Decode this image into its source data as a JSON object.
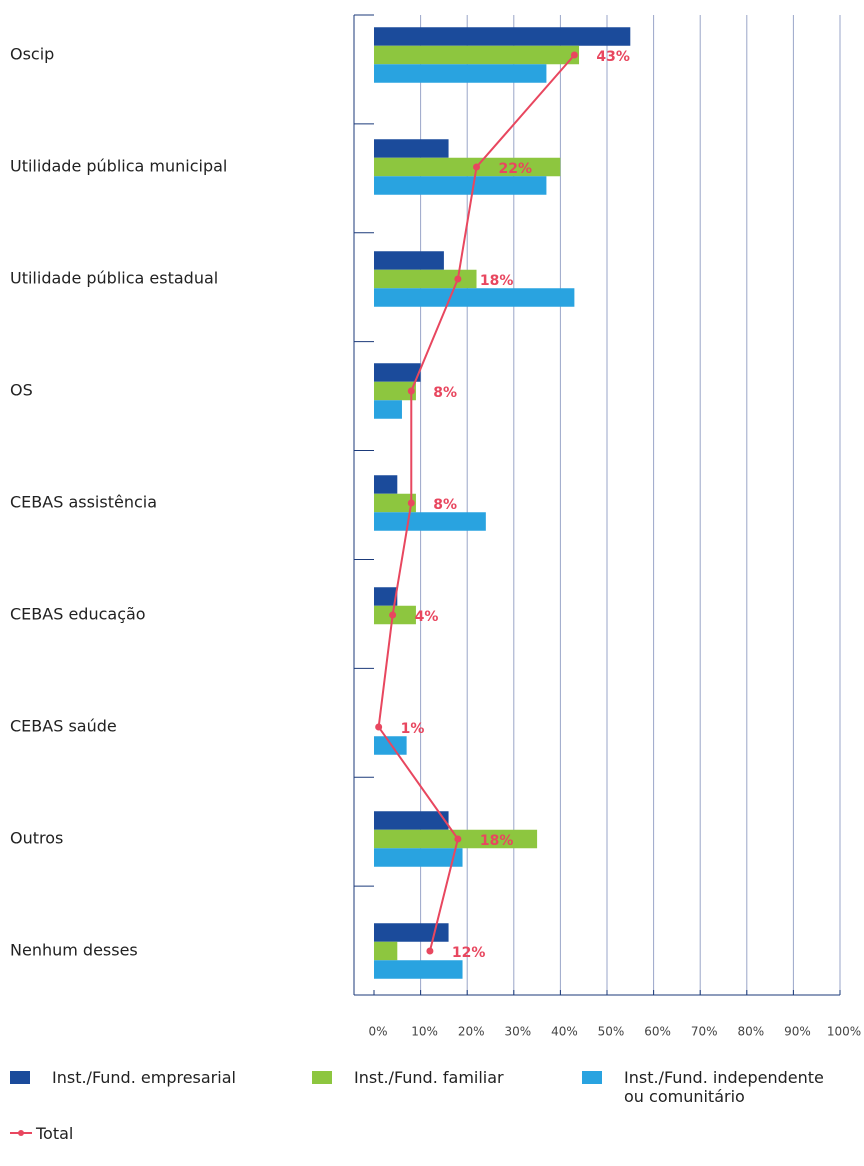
{
  "chart_data": {
    "type": "bar",
    "orientation": "horizontal",
    "categories": [
      "Oscip",
      "Utilidade pública municipal",
      "Utilidade pública estadual",
      "OS",
      "CEBAS assistência",
      "CEBAS educação",
      "CEBAS saúde",
      "Outros",
      "Nenhum desses"
    ],
    "series": [
      {
        "name": "Inst./Fund. empresarial",
        "color": "#1b4b9b",
        "values": [
          55,
          16,
          15,
          10,
          5,
          5,
          0,
          16,
          16
        ]
      },
      {
        "name": "Inst./Fund. familiar",
        "color": "#8dc63f",
        "values": [
          44,
          40,
          22,
          9,
          9,
          9,
          0,
          35,
          5
        ]
      },
      {
        "name": "Inst./Fund. independente ou comunitário",
        "color": "#29a3e0",
        "values": [
          37,
          37,
          43,
          6,
          24,
          0,
          7,
          19,
          19
        ]
      },
      {
        "name": "Total",
        "type": "line",
        "color": "#e8475f",
        "values": [
          43,
          22,
          18,
          8,
          8,
          4,
          1,
          18,
          12
        ],
        "value_labels": [
          "43%",
          "22%",
          "18%",
          "8%",
          "8%",
          "4%",
          "1%",
          "18%",
          "12%"
        ]
      }
    ],
    "xlim": [
      0,
      100
    ],
    "xticks": [
      {
        "value": 0,
        "label": "0%"
      },
      {
        "value": 10,
        "label": "10%"
      },
      {
        "value": 20,
        "label": "20%"
      },
      {
        "value": 30,
        "label": "30%"
      },
      {
        "value": 40,
        "label": "40%"
      },
      {
        "value": 50,
        "label": "50%"
      },
      {
        "value": 60,
        "label": "60%"
      },
      {
        "value": 70,
        "label": "70%"
      },
      {
        "value": 80,
        "label": "80%"
      },
      {
        "value": 90,
        "label": "90%"
      },
      {
        "value": 100,
        "label": "100%"
      }
    ],
    "grid": true
  }
}
